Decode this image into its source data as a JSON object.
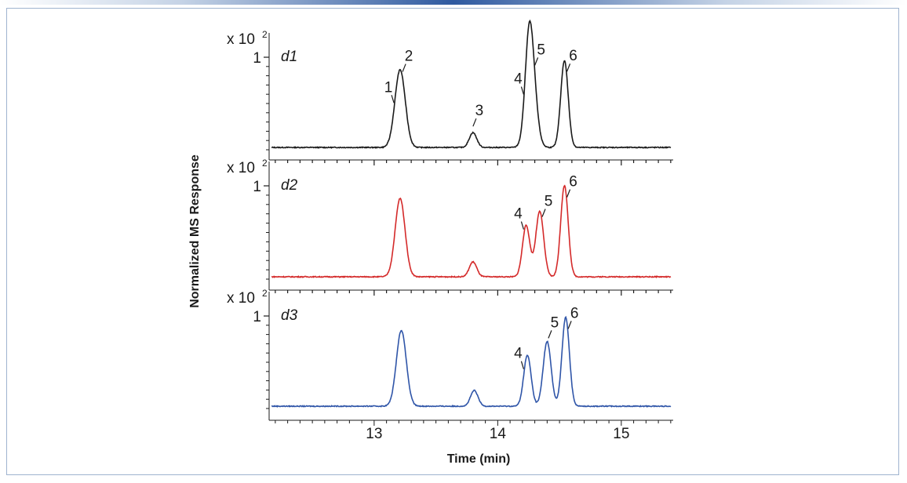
{
  "chart_data": {
    "type": "line",
    "xlabel": "Time (min)",
    "ylabel": "Normalized MS Response",
    "xlim": [
      12.15,
      15.42
    ],
    "x_ticks": [
      13,
      14,
      15
    ],
    "x_tick_labels": [
      "13",
      "14",
      "15"
    ],
    "panels": [
      {
        "name": "d1",
        "color": "#1a1a1a",
        "scale_label": "x 10",
        "scale_exp": "2",
        "y_tick_label": "1",
        "ylim": [
          0,
          1.3
        ],
        "peaks": [
          {
            "rt": 13.21,
            "height": 0.84,
            "width": 0.042
          },
          {
            "rt": 13.8,
            "height": 0.16,
            "width": 0.03
          },
          {
            "rt": 14.25,
            "height": 0.5,
            "width": 0.03
          },
          {
            "rt": 14.27,
            "height": 0.92,
            "width": 0.04
          },
          {
            "rt": 14.54,
            "height": 0.94,
            "width": 0.03
          }
        ],
        "annotations": [
          {
            "label": "1",
            "x": 13.16
          },
          {
            "label": "2",
            "x": 13.23
          },
          {
            "label": "3",
            "x": 13.8
          },
          {
            "label": "4",
            "x": 14.21
          },
          {
            "label": "5",
            "x": 14.3
          },
          {
            "label": "6",
            "x": 14.56
          }
        ]
      },
      {
        "name": "d2",
        "color": "#d42a2a",
        "scale_label": "x 10",
        "scale_exp": "2",
        "y_tick_label": "1",
        "ylim": [
          0,
          1.3
        ],
        "peaks": [
          {
            "rt": 13.21,
            "height": 0.84,
            "width": 0.04
          },
          {
            "rt": 13.8,
            "height": 0.16,
            "width": 0.03
          },
          {
            "rt": 14.23,
            "height": 0.55,
            "width": 0.03
          },
          {
            "rt": 14.34,
            "height": 0.7,
            "width": 0.032
          },
          {
            "rt": 14.54,
            "height": 0.98,
            "width": 0.03
          }
        ],
        "annotations": [
          {
            "label": "4",
            "x": 14.21
          },
          {
            "label": "5",
            "x": 14.36
          },
          {
            "label": "6",
            "x": 14.56
          }
        ]
      },
      {
        "name": "d3",
        "color": "#2f55a8",
        "scale_label": "x 10",
        "scale_exp": "2",
        "y_tick_label": "1",
        "ylim": [
          0,
          1.3
        ],
        "peaks": [
          {
            "rt": 13.22,
            "height": 0.82,
            "width": 0.04
          },
          {
            "rt": 13.81,
            "height": 0.17,
            "width": 0.03
          },
          {
            "rt": 14.24,
            "height": 0.55,
            "width": 0.03
          },
          {
            "rt": 14.4,
            "height": 0.7,
            "width": 0.032
          },
          {
            "rt": 14.55,
            "height": 0.96,
            "width": 0.03
          }
        ],
        "annotations": [
          {
            "label": "4",
            "x": 14.21
          },
          {
            "label": "5",
            "x": 14.41
          },
          {
            "label": "6",
            "x": 14.57
          }
        ]
      }
    ]
  }
}
